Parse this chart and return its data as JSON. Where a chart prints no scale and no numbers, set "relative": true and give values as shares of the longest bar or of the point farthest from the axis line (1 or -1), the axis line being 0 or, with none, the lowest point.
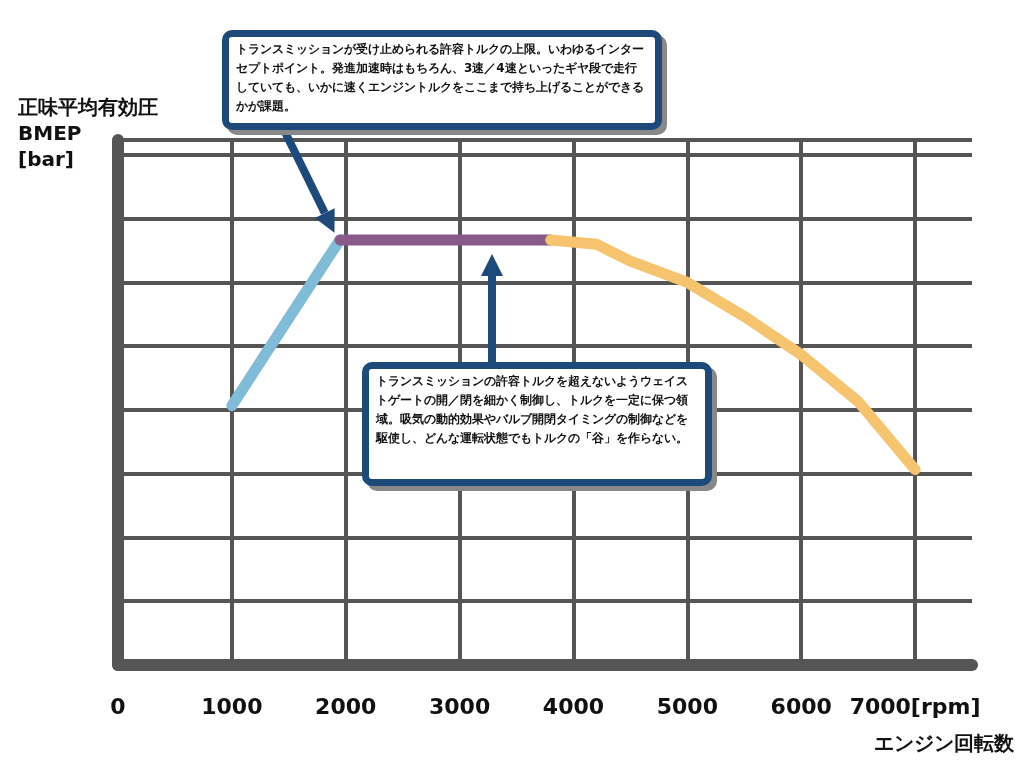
{
  "chart_data": {
    "type": "line",
    "relative": true,
    "xlabel": "エンジン回転数",
    "ylabel": "正味平均有効圧\nBMEP\n[bar]",
    "xlim": [
      0,
      7500
    ],
    "xticks": [
      0,
      1000,
      2000,
      3000,
      4000,
      5000,
      6000,
      {
        "value": 7000,
        "label": "7000[rpm]"
      }
    ],
    "series": [
      {
        "color": "#80bbd8",
        "x": [
          1000,
          1850,
          1950
        ],
        "values": [
          0.61,
          0.96,
          1
        ]
      },
      {
        "color": "#8a5a8b",
        "x": [
          1950,
          3800
        ],
        "values": [
          1,
          1
        ]
      },
      {
        "color": "#f6c46e",
        "x": [
          3800,
          4200,
          4500,
          5000,
          5500,
          6000,
          6500,
          7000
        ],
        "values": [
          1,
          0.99,
          0.95,
          0.9,
          0.82,
          0.73,
          0.62,
          0.46
        ]
      }
    ],
    "grid": true,
    "marker": "none",
    "line_style": "solid",
    "annotations": [
      "トランスミッションが受け止められる許容トルクの上限。いわゆるインターセプトポイント。発進加速時はもちろん、3速／4速といったギヤ段で走行していても、いかに速くエンジントルクをここまで持ち上げることができるかが課題。",
      "トランスミッションの許容トルクを超えないようウェイストゲートの開／閉を細かく制御し、トルクを一定に保つ領域。吸気の動的効果やバルブ開閉タイミングの制御などを駆使し、どんな運転状態でもトルクの「谷」を作らない。"
    ]
  }
}
